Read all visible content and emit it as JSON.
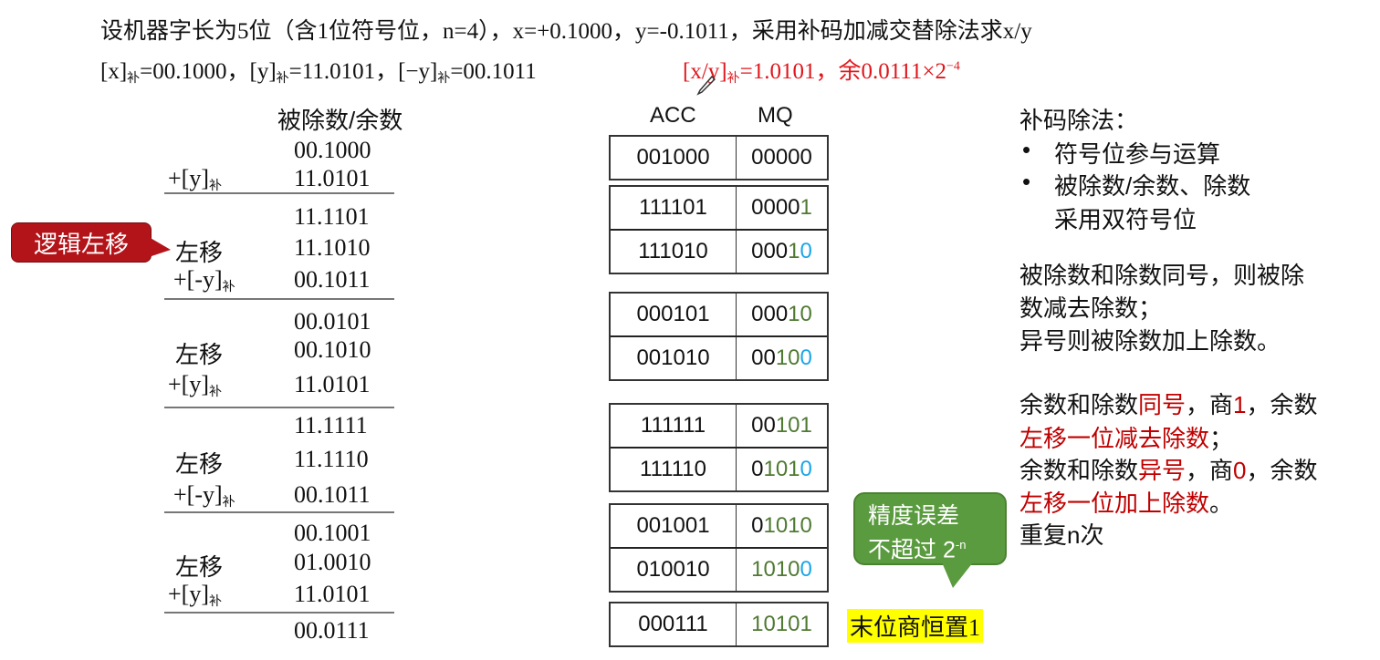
{
  "problem": {
    "line1": "设机器字长为5位（含1位符号位，n=4），x=+0.1000，y=-0.1011，采用补码加减交替除法求x/y",
    "line2_parts": [
      "[x]",
      "补",
      "=00.1000，[y]",
      "补",
      "=11.0101，[−y]",
      "补",
      "=00.1011"
    ],
    "answer_parts": [
      "[x/y]",
      "补",
      "=1.0101，余0.0111×2",
      "−4"
    ]
  },
  "left": {
    "header": "被除数/余数",
    "rows": [
      {
        "label": "",
        "sub": "",
        "value": "00.1000"
      },
      {
        "label": "+[y]",
        "sub": "补",
        "value": "11.0101"
      },
      {
        "label": "",
        "sub": "",
        "value": "11.1101"
      },
      {
        "label": "左移",
        "sub": "",
        "value": "11.1010"
      },
      {
        "label": "+[-y]",
        "sub": "补",
        "value": "00.1011"
      },
      {
        "label": "",
        "sub": "",
        "value": "00.0101"
      },
      {
        "label": "左移",
        "sub": "",
        "value": "00.1010"
      },
      {
        "label": "+[y]",
        "sub": "补",
        "value": "11.0101"
      },
      {
        "label": "",
        "sub": "",
        "value": "11.1111"
      },
      {
        "label": "左移",
        "sub": "",
        "value": "11.1110"
      },
      {
        "label": "+[-y]",
        "sub": "补",
        "value": "00.1011"
      },
      {
        "label": "",
        "sub": "",
        "value": "00.1001"
      },
      {
        "label": "左移",
        "sub": "",
        "value": "01.0010"
      },
      {
        "label": "+[y]",
        "sub": "补",
        "value": "11.0101"
      },
      {
        "label": "",
        "sub": "",
        "value": "00.0111"
      }
    ]
  },
  "callout": "逻辑左移",
  "table": {
    "headers": [
      "ACC",
      "MQ"
    ],
    "groups": [
      [
        {
          "acc": "001000",
          "mq": [
            "00000",
            "",
            ""
          ]
        }
      ],
      [
        {
          "acc": "111101",
          "mq": [
            "0000",
            "1",
            ""
          ]
        },
        {
          "acc": "111010",
          "mq": [
            "000",
            "1",
            "0"
          ]
        }
      ],
      [
        {
          "acc": "000101",
          "mq": [
            "000",
            "10",
            ""
          ]
        },
        {
          "acc": "001010",
          "mq": [
            "00",
            "10",
            "0"
          ]
        }
      ],
      [
        {
          "acc": "111111",
          "mq": [
            "00",
            "101",
            ""
          ]
        },
        {
          "acc": "111110",
          "mq": [
            "0",
            "101",
            "0"
          ]
        }
      ],
      [
        {
          "acc": "001001",
          "mq": [
            "0",
            "1010",
            ""
          ]
        },
        {
          "acc": "010010",
          "mq": [
            "",
            "1010",
            "0"
          ]
        }
      ],
      [
        {
          "acc": "000111",
          "mq": [
            "",
            "10101",
            ""
          ]
        }
      ]
    ]
  },
  "bubble": {
    "line1": "精度误差",
    "line2": "不超过 2",
    "sup": "-n"
  },
  "highlight": "末位商恒置1",
  "rules": {
    "title": "补码除法：",
    "bullets": [
      "符号位参与运算",
      "被除数/余数、除数",
      "采用双符号位"
    ],
    "p1": [
      "被除数和除数同号，则被除",
      "数减去除数；",
      "异号则被除数加上除数。"
    ],
    "p2": [
      [
        [
          "余数和除数",
          ""
        ],
        [
          "同号",
          "r"
        ],
        [
          "，商",
          ""
        ],
        [
          "1",
          "r"
        ],
        [
          "，余数",
          ""
        ]
      ],
      [
        [
          "左移一位减去除数",
          "r"
        ],
        [
          "；",
          ""
        ]
      ],
      [
        [
          "余数和除数",
          ""
        ],
        [
          "异号",
          "r"
        ],
        [
          "，商",
          ""
        ],
        [
          "0",
          "r"
        ],
        [
          "，余数",
          ""
        ]
      ],
      [
        [
          "左移一位加上除数",
          "r"
        ],
        [
          "。",
          ""
        ]
      ],
      [
        [
          "重复n次",
          ""
        ]
      ]
    ]
  },
  "colors": {
    "accent_red": "#c00000",
    "callout": "#b3141a",
    "bubble": "#5b9b3f",
    "quotient_green": "#4f7a32",
    "new_bit_blue": "#1aa6e8",
    "highlight": "#ffff00"
  }
}
